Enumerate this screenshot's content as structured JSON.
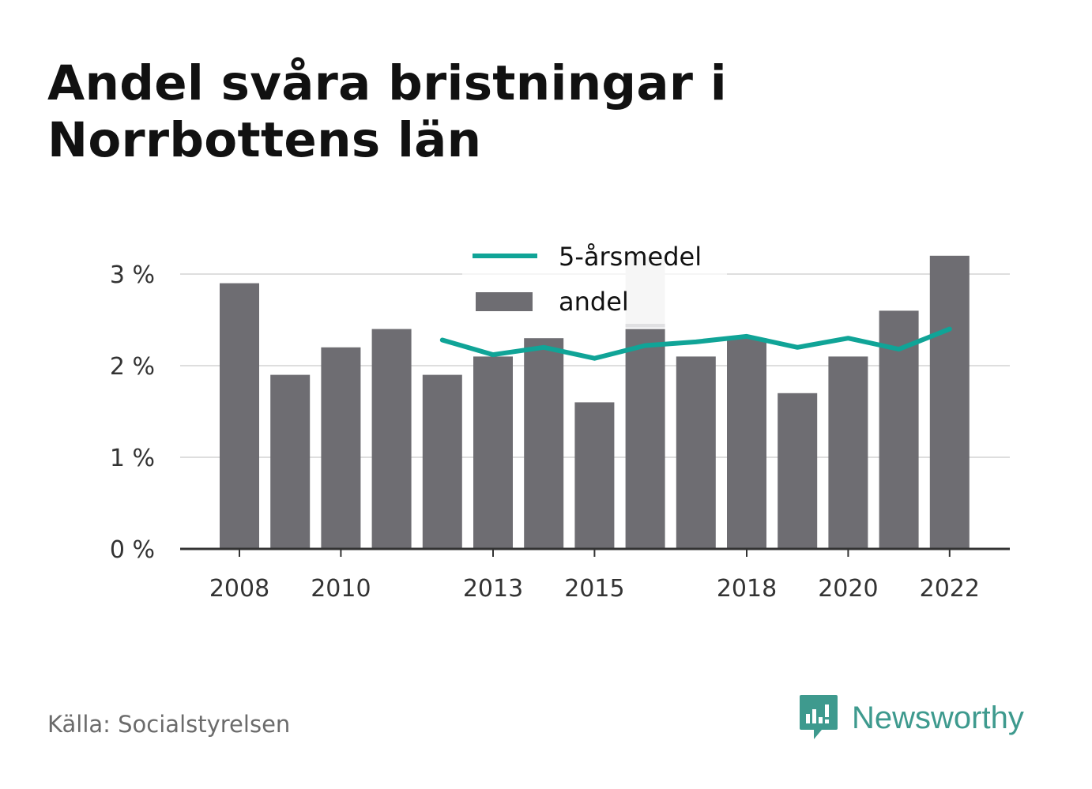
{
  "title": "Andel svåra bristningar i Norrbottens län",
  "source": "Källa: Socialstyrelsen",
  "brand": {
    "name": "Newsworthy",
    "icon": "newsworthy-logo-icon",
    "color": "#3e9a8e"
  },
  "colors": {
    "bar": "#6e6d72",
    "line": "#10a497",
    "grid": "#dedede",
    "axis": "#333333",
    "highlight": "#e0e0e2"
  },
  "chart_data": {
    "type": "bar",
    "x": [
      2008,
      2009,
      2010,
      2011,
      2012,
      2013,
      2014,
      2015,
      2016,
      2017,
      2018,
      2019,
      2020,
      2021,
      2022
    ],
    "series": [
      {
        "name": "andel",
        "type": "bar",
        "values": [
          2.9,
          1.9,
          2.2,
          2.4,
          1.9,
          2.1,
          2.3,
          1.6,
          2.4,
          2.1,
          2.3,
          1.7,
          2.1,
          2.6,
          3.2
        ]
      },
      {
        "name": "5-årsmedel",
        "type": "line",
        "values": [
          null,
          null,
          null,
          null,
          2.28,
          2.12,
          2.2,
          2.08,
          2.22,
          2.26,
          2.32,
          2.2,
          2.3,
          2.18,
          2.4
        ]
      }
    ],
    "x_tick_labels": [
      "2008",
      "2010",
      "2013",
      "2015",
      "2018",
      "2020",
      "2022"
    ],
    "y_tick_labels": [
      "0 %",
      "1 %",
      "2 %",
      "3 %"
    ],
    "y_ticks": [
      0,
      1,
      2,
      3
    ],
    "ylim": [
      0,
      3.3
    ],
    "grid": true,
    "legend_position": "top-center",
    "legend": [
      {
        "label": "5-årsmedel",
        "kind": "line"
      },
      {
        "label": "andel",
        "kind": "bar"
      }
    ]
  }
}
